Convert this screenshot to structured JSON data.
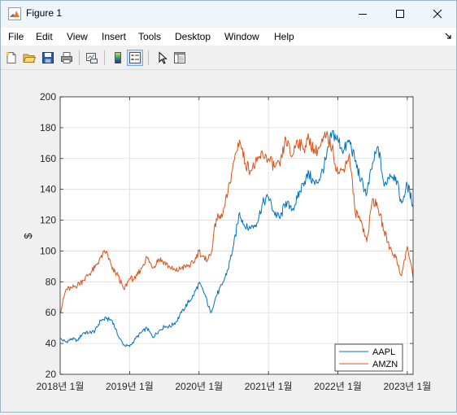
{
  "window": {
    "title": "Figure 1",
    "controls": {
      "minimize": "minimize",
      "maximize": "maximize",
      "close": "close"
    }
  },
  "menubar": {
    "items": [
      {
        "label": "File"
      },
      {
        "label": "Edit"
      },
      {
        "label": "View"
      },
      {
        "label": "Insert"
      },
      {
        "label": "Tools"
      },
      {
        "label": "Desktop"
      },
      {
        "label": "Window"
      },
      {
        "label": "Help"
      }
    ]
  },
  "toolbar": {
    "buttons": [
      {
        "icon": "new-figure-icon"
      },
      {
        "icon": "open-file-icon"
      },
      {
        "icon": "save-icon"
      },
      {
        "icon": "print-icon"
      },
      {
        "icon": "link-plot-icon"
      },
      {
        "icon": "insert-colorbar-icon"
      },
      {
        "icon": "insert-legend-icon"
      },
      {
        "icon": "edit-plot-icon"
      },
      {
        "icon": "property-inspector-icon"
      }
    ]
  },
  "chart_data": {
    "type": "line",
    "title": "",
    "xlabel": "",
    "ylabel": "$",
    "x_ticks": [
      "2018년 1월",
      "2019년 1월",
      "2020년 1월",
      "2021년 1월",
      "2022년 1월",
      "2023년 1월"
    ],
    "x_range": [
      "2018-01",
      "2023-02"
    ],
    "ylim": [
      20,
      200
    ],
    "y_ticks": [
      20,
      40,
      60,
      80,
      100,
      120,
      140,
      160,
      180,
      200
    ],
    "grid": true,
    "legend": "bottom-right",
    "colors": {
      "AAPL": "#0072BD",
      "AMZN": "#D95319"
    },
    "series": [
      {
        "name": "AAPL",
        "points": [
          [
            "2018-01",
            43
          ],
          [
            "2018-02",
            41
          ],
          [
            "2018-03",
            43
          ],
          [
            "2018-04",
            42
          ],
          [
            "2018-05",
            47
          ],
          [
            "2018-06",
            47
          ],
          [
            "2018-07",
            48
          ],
          [
            "2018-08",
            55
          ],
          [
            "2018-09",
            56
          ],
          [
            "2018-10",
            55
          ],
          [
            "2018-11",
            45
          ],
          [
            "2018-12",
            39
          ],
          [
            "2019-01",
            38
          ],
          [
            "2019-02",
            43
          ],
          [
            "2019-03",
            47
          ],
          [
            "2019-04",
            50
          ],
          [
            "2019-05",
            44
          ],
          [
            "2019-06",
            48
          ],
          [
            "2019-07",
            51
          ],
          [
            "2019-08",
            51
          ],
          [
            "2019-09",
            54
          ],
          [
            "2019-10",
            60
          ],
          [
            "2019-11",
            66
          ],
          [
            "2019-12",
            71
          ],
          [
            "2020-01",
            79
          ],
          [
            "2020-02",
            72
          ],
          [
            "2020-03",
            60
          ],
          [
            "2020-04",
            71
          ],
          [
            "2020-05",
            78
          ],
          [
            "2020-06",
            88
          ],
          [
            "2020-07",
            104
          ],
          [
            "2020-08",
            125
          ],
          [
            "2020-09",
            115
          ],
          [
            "2020-10",
            115
          ],
          [
            "2020-11",
            118
          ],
          [
            "2020-12",
            131
          ],
          [
            "2021-01",
            135
          ],
          [
            "2021-02",
            125
          ],
          [
            "2021-03",
            121
          ],
          [
            "2021-04",
            132
          ],
          [
            "2021-05",
            126
          ],
          [
            "2021-06",
            134
          ],
          [
            "2021-07",
            144
          ],
          [
            "2021-08",
            150
          ],
          [
            "2021-09",
            143
          ],
          [
            "2021-10",
            148
          ],
          [
            "2021-11",
            160
          ],
          [
            "2021-12",
            177
          ],
          [
            "2022-01",
            172
          ],
          [
            "2022-02",
            165
          ],
          [
            "2022-03",
            172
          ],
          [
            "2022-04",
            158
          ],
          [
            "2022-05",
            146
          ],
          [
            "2022-06",
            137
          ],
          [
            "2022-07",
            157
          ],
          [
            "2022-08",
            167
          ],
          [
            "2022-09",
            142
          ],
          [
            "2022-10",
            150
          ],
          [
            "2022-11",
            148
          ],
          [
            "2022-12",
            131
          ],
          [
            "2023-01",
            143
          ],
          [
            "2023-02",
            130
          ]
        ]
      },
      {
        "name": "AMZN",
        "points": [
          [
            "2018-01",
            60
          ],
          [
            "2018-02",
            75
          ],
          [
            "2018-03",
            76
          ],
          [
            "2018-04",
            78
          ],
          [
            "2018-05",
            81
          ],
          [
            "2018-06",
            85
          ],
          [
            "2018-07",
            89
          ],
          [
            "2018-08",
            96
          ],
          [
            "2018-09",
            100
          ],
          [
            "2018-10",
            88
          ],
          [
            "2018-11",
            84
          ],
          [
            "2018-12",
            75
          ],
          [
            "2019-01",
            82
          ],
          [
            "2019-02",
            82
          ],
          [
            "2019-03",
            89
          ],
          [
            "2019-04",
            96
          ],
          [
            "2019-05",
            89
          ],
          [
            "2019-06",
            95
          ],
          [
            "2019-07",
            93
          ],
          [
            "2019-08",
            89
          ],
          [
            "2019-09",
            87
          ],
          [
            "2019-10",
            89
          ],
          [
            "2019-11",
            90
          ],
          [
            "2019-12",
            92
          ],
          [
            "2020-01",
            100
          ],
          [
            "2020-02",
            94
          ],
          [
            "2020-03",
            97
          ],
          [
            "2020-04",
            121
          ],
          [
            "2020-05",
            122
          ],
          [
            "2020-06",
            138
          ],
          [
            "2020-07",
            158
          ],
          [
            "2020-08",
            172
          ],
          [
            "2020-09",
            157
          ],
          [
            "2020-10",
            152
          ],
          [
            "2020-11",
            158
          ],
          [
            "2020-12",
            163
          ],
          [
            "2021-01",
            160
          ],
          [
            "2021-02",
            155
          ],
          [
            "2021-03",
            155
          ],
          [
            "2021-04",
            173
          ],
          [
            "2021-05",
            161
          ],
          [
            "2021-06",
            172
          ],
          [
            "2021-07",
            166
          ],
          [
            "2021-08",
            173
          ],
          [
            "2021-09",
            164
          ],
          [
            "2021-10",
            168
          ],
          [
            "2021-11",
            175
          ],
          [
            "2021-12",
            167
          ],
          [
            "2022-01",
            150
          ],
          [
            "2022-02",
            153
          ],
          [
            "2022-03",
            163
          ],
          [
            "2022-04",
            125
          ],
          [
            "2022-05",
            120
          ],
          [
            "2022-06",
            106
          ],
          [
            "2022-07",
            134
          ],
          [
            "2022-08",
            127
          ],
          [
            "2022-09",
            113
          ],
          [
            "2022-10",
            102
          ],
          [
            "2022-11",
            96
          ],
          [
            "2022-12",
            84
          ],
          [
            "2023-01",
            103
          ],
          [
            "2023-02",
            83
          ]
        ]
      }
    ]
  }
}
